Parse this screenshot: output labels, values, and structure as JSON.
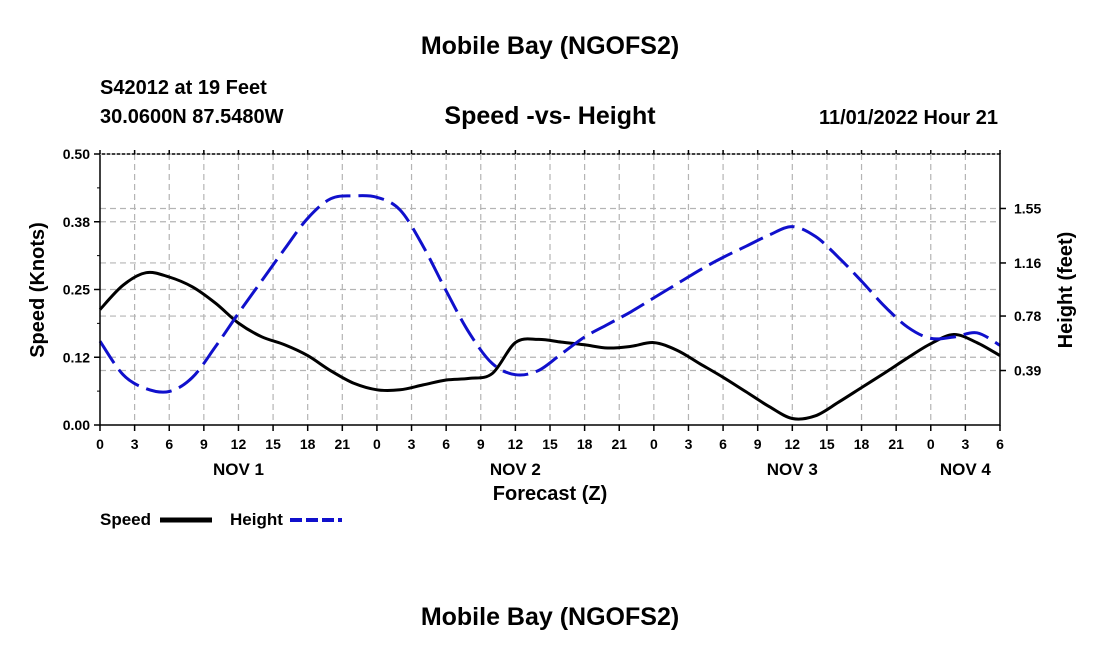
{
  "page": {
    "title_top": "Mobile Bay (NGOFS2)",
    "title_bottom": "Mobile Bay (NGOFS2)",
    "station": "S42012 at 19 Feet",
    "coords": "30.0600N  87.5480W",
    "chart_title": "Speed -vs- Height",
    "run_time": "11/01/2022 Hour 21"
  },
  "chart_data": {
    "type": "line",
    "title": "Speed -vs- Height",
    "xlabel": "Forecast (Z)",
    "ylabel": "Speed (Knots)",
    "y2label": "Height (feet)",
    "x_unit": "hours from 11/01 00Z",
    "xlim": [
      0,
      78
    ],
    "x_ticks": [
      0,
      3,
      6,
      9,
      12,
      15,
      18,
      21,
      24,
      27,
      30,
      33,
      36,
      39,
      42,
      45,
      48,
      51,
      54,
      57,
      60,
      63,
      66,
      69,
      72,
      75,
      78
    ],
    "x_tick_labels": [
      "0",
      "3",
      "6",
      "9",
      "12",
      "15",
      "18",
      "21",
      "0",
      "3",
      "6",
      "9",
      "12",
      "15",
      "18",
      "21",
      "0",
      "3",
      "6",
      "9",
      "12",
      "15",
      "18",
      "21",
      "0",
      "3",
      "6"
    ],
    "day_labels": [
      {
        "x": 12,
        "label": "NOV 1"
      },
      {
        "x": 36,
        "label": "NOV 2"
      },
      {
        "x": 60,
        "label": "NOV 3"
      },
      {
        "x": 75,
        "label": "NOV 4"
      }
    ],
    "ylim": [
      0,
      0.5
    ],
    "y_ticks": [
      0,
      0.125,
      0.25,
      0.375,
      0.5
    ],
    "y_tick_labels": [
      "0.00",
      "0.12",
      "0.25",
      "0.38",
      "0.50"
    ],
    "y2lim": [
      0,
      1.94
    ],
    "y2_ticks": [
      0.39,
      0.78,
      1.16,
      1.55
    ],
    "y2_tick_labels": [
      "0.39",
      "0.78",
      "1.16",
      "1.55"
    ],
    "grid": true,
    "legend_position": "bottom-left",
    "series": [
      {
        "name": "Speed",
        "color": "#000000",
        "style": "solid",
        "axis": "left",
        "x": [
          0,
          2,
          4,
          6,
          8,
          10,
          12,
          14,
          16,
          18,
          20,
          22,
          24,
          26,
          28,
          30,
          32,
          34,
          36,
          38,
          40,
          42,
          44,
          46,
          48,
          50,
          52,
          54,
          56,
          58,
          60,
          62,
          64,
          66,
          68,
          70,
          72,
          74,
          76,
          78
        ],
        "values": [
          0.213,
          0.258,
          0.281,
          0.273,
          0.255,
          0.225,
          0.188,
          0.163,
          0.148,
          0.128,
          0.1,
          0.077,
          0.065,
          0.065,
          0.074,
          0.083,
          0.086,
          0.095,
          0.152,
          0.158,
          0.153,
          0.148,
          0.142,
          0.145,
          0.152,
          0.138,
          0.113,
          0.088,
          0.061,
          0.034,
          0.012,
          0.017,
          0.042,
          0.069,
          0.096,
          0.124,
          0.15,
          0.167,
          0.152,
          0.128
        ]
      },
      {
        "name": "Height",
        "color": "#1010cc",
        "style": "dashed",
        "axis": "right",
        "x": [
          0,
          2,
          4,
          6,
          8,
          10,
          12,
          14,
          16,
          18,
          20,
          22,
          24,
          26,
          28,
          30,
          32,
          34,
          36,
          38,
          40,
          42,
          44,
          46,
          48,
          50,
          52,
          54,
          56,
          58,
          60,
          62,
          64,
          66,
          68,
          70,
          72,
          74,
          76,
          78
        ],
        "values": [
          0.6,
          0.36,
          0.26,
          0.24,
          0.34,
          0.56,
          0.8,
          1.03,
          1.26,
          1.48,
          1.62,
          1.64,
          1.63,
          1.54,
          1.28,
          0.96,
          0.66,
          0.44,
          0.36,
          0.39,
          0.51,
          0.63,
          0.72,
          0.81,
          0.91,
          1.01,
          1.11,
          1.2,
          1.28,
          1.36,
          1.42,
          1.35,
          1.2,
          1.03,
          0.85,
          0.7,
          0.62,
          0.63,
          0.66,
          0.57
        ]
      }
    ]
  }
}
